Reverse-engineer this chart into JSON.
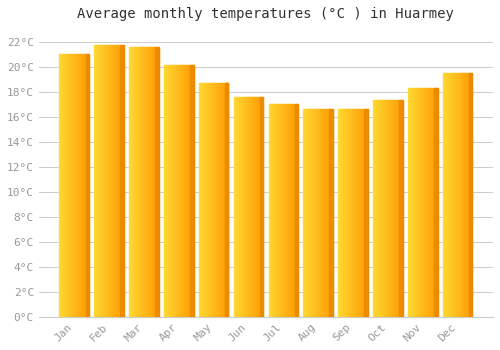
{
  "title": "Average monthly temperatures (°C ) in Huarmey",
  "months": [
    "Jan",
    "Feb",
    "Mar",
    "Apr",
    "May",
    "Jun",
    "Jul",
    "Aug",
    "Sep",
    "Oct",
    "Nov",
    "Dec"
  ],
  "temperatures": [
    21.0,
    21.7,
    21.6,
    20.1,
    18.7,
    17.6,
    17.0,
    16.6,
    16.6,
    17.3,
    18.3,
    19.5
  ],
  "bar_color_main": "#FFAA00",
  "bar_color_light": "#FFD966",
  "bar_color_dark": "#E08000",
  "background_color": "#FFFFFF",
  "grid_color": "#CCCCCC",
  "ytick_labels": [
    "0°C",
    "2°C",
    "4°C",
    "6°C",
    "8°C",
    "10°C",
    "12°C",
    "14°C",
    "16°C",
    "18°C",
    "20°C",
    "22°C"
  ],
  "ytick_values": [
    0,
    2,
    4,
    6,
    8,
    10,
    12,
    14,
    16,
    18,
    20,
    22
  ],
  "ylim": [
    0,
    23
  ],
  "title_fontsize": 10,
  "tick_fontsize": 8,
  "tick_color": "#999999",
  "font_family": "monospace",
  "bar_width": 0.85,
  "figsize": [
    5.0,
    3.5
  ],
  "dpi": 100
}
